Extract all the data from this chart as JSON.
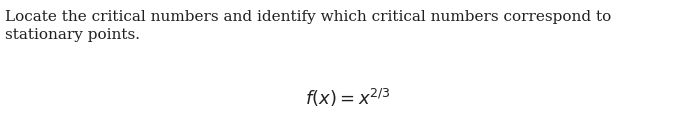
{
  "line1": "Locate the critical numbers and identify which critical numbers correspond to",
  "line2": "stationary points.",
  "formula": "$f(x) = x^{2/3}$",
  "bg_color": "#ffffff",
  "text_color": "#231f20",
  "font_size_body": 11.0,
  "font_size_formula": 13.0,
  "fig_width": 6.96,
  "fig_height": 1.29,
  "dpi": 100
}
